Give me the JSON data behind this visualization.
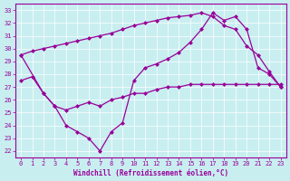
{
  "xlabel": "Windchill (Refroidissement éolien,°C)",
  "bg_color": "#c8eef0",
  "line_color": "#990099",
  "xlim": [
    -0.5,
    23.5
  ],
  "ylim": [
    21.5,
    33.5
  ],
  "xticks": [
    0,
    1,
    2,
    3,
    4,
    5,
    6,
    7,
    8,
    9,
    10,
    11,
    12,
    13,
    14,
    15,
    16,
    17,
    18,
    19,
    20,
    21,
    22,
    23
  ],
  "yticks": [
    22,
    23,
    24,
    25,
    26,
    27,
    28,
    29,
    30,
    31,
    32,
    33
  ],
  "line1_x": [
    0,
    1,
    2,
    3,
    4,
    5,
    6,
    7,
    8,
    9,
    10,
    11,
    12,
    13,
    14,
    15,
    16,
    17,
    18,
    19,
    20,
    21,
    22,
    23
  ],
  "line1_y": [
    29.5,
    29.8,
    30.0,
    30.2,
    30.4,
    30.6,
    30.8,
    31.0,
    31.2,
    31.5,
    31.8,
    32.0,
    32.2,
    32.4,
    32.5,
    32.6,
    32.8,
    32.5,
    31.8,
    31.5,
    30.2,
    29.5,
    28.2,
    27.0
  ],
  "line2_x": [
    0,
    2,
    3,
    4,
    5,
    6,
    7,
    8,
    9,
    10,
    11,
    12,
    13,
    14,
    15,
    16,
    17,
    18,
    19,
    20,
    21,
    22,
    23
  ],
  "line2_y": [
    29.5,
    26.5,
    25.5,
    24.0,
    23.5,
    23.0,
    22.0,
    23.5,
    24.2,
    27.5,
    28.5,
    28.8,
    29.2,
    29.7,
    30.5,
    31.5,
    32.8,
    32.2,
    32.5,
    31.5,
    28.5,
    28.0,
    27.0
  ],
  "line3_x": [
    0,
    1,
    2,
    3,
    4,
    5,
    6,
    7,
    8,
    9,
    10,
    11,
    12,
    13,
    14,
    15,
    16,
    17,
    18,
    19,
    20,
    21,
    22,
    23
  ],
  "line3_y": [
    27.5,
    27.8,
    26.5,
    25.5,
    25.2,
    25.5,
    25.8,
    25.5,
    26.0,
    26.2,
    26.5,
    26.5,
    26.8,
    27.0,
    27.0,
    27.2,
    27.2,
    27.2,
    27.2,
    27.2,
    27.2,
    27.2,
    27.2,
    27.2
  ]
}
